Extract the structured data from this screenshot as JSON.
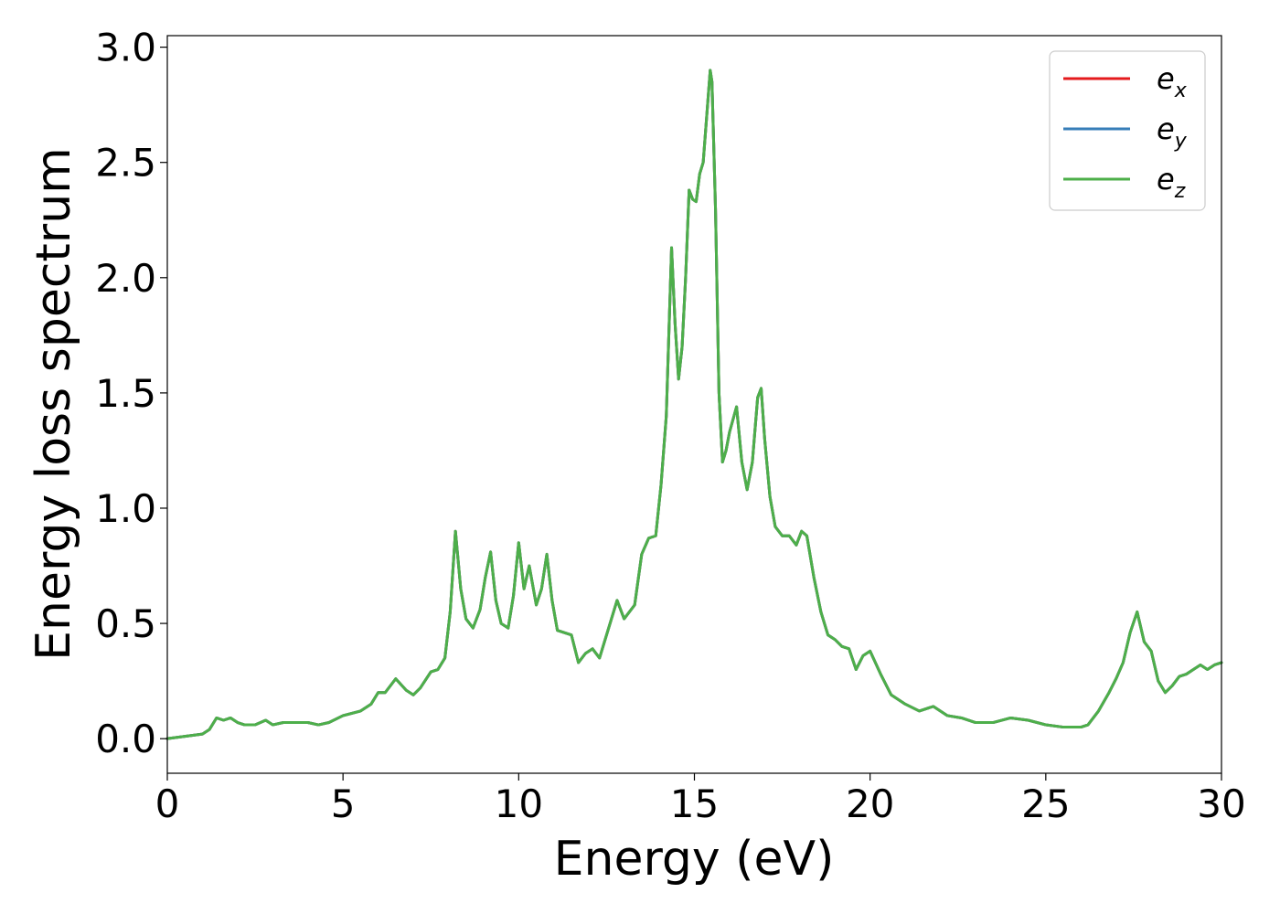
{
  "chart_data": {
    "type": "line",
    "title": "",
    "xlabel": "Energy (eV)",
    "ylabel": "Energy loss spectrum",
    "xlim": [
      0,
      30
    ],
    "ylim": [
      -0.15,
      3.05
    ],
    "xticks": [
      0,
      5,
      10,
      15,
      20,
      25,
      30
    ],
    "yticks": [
      0.0,
      0.5,
      1.0,
      1.5,
      2.0,
      2.5,
      3.0
    ],
    "xtick_labels": [
      "0",
      "5",
      "10",
      "15",
      "20",
      "25",
      "30"
    ],
    "ytick_labels": [
      "0.0",
      "0.5",
      "1.0",
      "1.5",
      "2.0",
      "2.5",
      "3.0"
    ],
    "grid": false,
    "legend_position": "top-right",
    "x": [
      0,
      0.5,
      1.0,
      1.2,
      1.4,
      1.6,
      1.8,
      2.0,
      2.2,
      2.5,
      2.8,
      3.0,
      3.3,
      3.6,
      4.0,
      4.3,
      4.6,
      5.0,
      5.5,
      5.8,
      6.0,
      6.2,
      6.5,
      6.8,
      7.0,
      7.2,
      7.5,
      7.7,
      7.9,
      8.05,
      8.2,
      8.35,
      8.5,
      8.7,
      8.9,
      9.05,
      9.2,
      9.35,
      9.5,
      9.7,
      9.85,
      10.0,
      10.15,
      10.3,
      10.5,
      10.65,
      10.8,
      10.95,
      11.1,
      11.3,
      11.5,
      11.7,
      11.9,
      12.1,
      12.3,
      12.6,
      12.8,
      13.0,
      13.3,
      13.5,
      13.7,
      13.9,
      14.05,
      14.2,
      14.35,
      14.45,
      14.55,
      14.65,
      14.75,
      14.85,
      14.95,
      15.05,
      15.15,
      15.25,
      15.35,
      15.45,
      15.5,
      15.6,
      15.7,
      15.8,
      15.9,
      16.0,
      16.2,
      16.35,
      16.5,
      16.65,
      16.8,
      16.9,
      17.0,
      17.15,
      17.3,
      17.5,
      17.7,
      17.9,
      18.05,
      18.2,
      18.4,
      18.6,
      18.8,
      19.0,
      19.2,
      19.4,
      19.6,
      19.8,
      20.0,
      20.3,
      20.6,
      21.0,
      21.4,
      21.8,
      22.2,
      22.6,
      23.0,
      23.5,
      24.0,
      24.5,
      25.0,
      25.5,
      26.0,
      26.2,
      26.5,
      26.8,
      27.0,
      27.2,
      27.4,
      27.6,
      27.8,
      28.0,
      28.2,
      28.4,
      28.6,
      28.8,
      29.0,
      29.2,
      29.4,
      29.6,
      29.8,
      30.0
    ],
    "series": [
      {
        "name": "e_x",
        "color": "#e41a1c",
        "y": [
          0.0,
          0.01,
          0.02,
          0.04,
          0.09,
          0.08,
          0.09,
          0.07,
          0.06,
          0.06,
          0.08,
          0.06,
          0.07,
          0.07,
          0.07,
          0.06,
          0.07,
          0.1,
          0.12,
          0.15,
          0.2,
          0.2,
          0.26,
          0.21,
          0.19,
          0.22,
          0.29,
          0.3,
          0.35,
          0.55,
          0.9,
          0.65,
          0.52,
          0.48,
          0.56,
          0.7,
          0.81,
          0.6,
          0.5,
          0.48,
          0.62,
          0.85,
          0.65,
          0.75,
          0.58,
          0.65,
          0.8,
          0.6,
          0.47,
          0.46,
          0.45,
          0.33,
          0.37,
          0.39,
          0.35,
          0.5,
          0.6,
          0.52,
          0.58,
          0.8,
          0.87,
          0.88,
          1.1,
          1.4,
          2.13,
          1.8,
          1.56,
          1.7,
          2.0,
          2.38,
          2.34,
          2.33,
          2.45,
          2.5,
          2.7,
          2.9,
          2.85,
          2.3,
          1.5,
          1.2,
          1.25,
          1.33,
          1.44,
          1.2,
          1.08,
          1.2,
          1.48,
          1.52,
          1.3,
          1.05,
          0.92,
          0.88,
          0.88,
          0.84,
          0.9,
          0.88,
          0.7,
          0.55,
          0.45,
          0.43,
          0.4,
          0.39,
          0.3,
          0.36,
          0.38,
          0.28,
          0.19,
          0.15,
          0.12,
          0.14,
          0.1,
          0.09,
          0.07,
          0.07,
          0.09,
          0.08,
          0.06,
          0.05,
          0.05,
          0.06,
          0.12,
          0.2,
          0.26,
          0.33,
          0.46,
          0.55,
          0.42,
          0.38,
          0.25,
          0.2,
          0.23,
          0.27,
          0.28,
          0.3,
          0.32,
          0.3,
          0.32,
          0.33
        ]
      },
      {
        "name": "e_y",
        "color": "#377eb8",
        "y": [
          0.0,
          0.01,
          0.02,
          0.04,
          0.09,
          0.08,
          0.09,
          0.07,
          0.06,
          0.06,
          0.08,
          0.06,
          0.07,
          0.07,
          0.07,
          0.06,
          0.07,
          0.1,
          0.12,
          0.15,
          0.2,
          0.2,
          0.26,
          0.21,
          0.19,
          0.22,
          0.29,
          0.3,
          0.35,
          0.55,
          0.9,
          0.65,
          0.52,
          0.48,
          0.56,
          0.7,
          0.81,
          0.6,
          0.5,
          0.48,
          0.62,
          0.85,
          0.65,
          0.75,
          0.58,
          0.65,
          0.8,
          0.6,
          0.47,
          0.46,
          0.45,
          0.33,
          0.37,
          0.39,
          0.35,
          0.5,
          0.6,
          0.52,
          0.58,
          0.8,
          0.87,
          0.88,
          1.1,
          1.4,
          2.13,
          1.8,
          1.56,
          1.7,
          2.0,
          2.38,
          2.34,
          2.33,
          2.45,
          2.5,
          2.7,
          2.9,
          2.85,
          2.3,
          1.5,
          1.2,
          1.25,
          1.33,
          1.44,
          1.2,
          1.08,
          1.2,
          1.48,
          1.52,
          1.3,
          1.05,
          0.92,
          0.88,
          0.88,
          0.84,
          0.9,
          0.88,
          0.7,
          0.55,
          0.45,
          0.43,
          0.4,
          0.39,
          0.3,
          0.36,
          0.38,
          0.28,
          0.19,
          0.15,
          0.12,
          0.14,
          0.1,
          0.09,
          0.07,
          0.07,
          0.09,
          0.08,
          0.06,
          0.05,
          0.05,
          0.06,
          0.12,
          0.2,
          0.26,
          0.33,
          0.46,
          0.55,
          0.42,
          0.38,
          0.25,
          0.2,
          0.23,
          0.27,
          0.28,
          0.3,
          0.32,
          0.3,
          0.32,
          0.33
        ]
      },
      {
        "name": "e_z",
        "color": "#4daf4a",
        "y": [
          0.0,
          0.01,
          0.02,
          0.04,
          0.09,
          0.08,
          0.09,
          0.07,
          0.06,
          0.06,
          0.08,
          0.06,
          0.07,
          0.07,
          0.07,
          0.06,
          0.07,
          0.1,
          0.12,
          0.15,
          0.2,
          0.2,
          0.26,
          0.21,
          0.19,
          0.22,
          0.29,
          0.3,
          0.35,
          0.55,
          0.9,
          0.65,
          0.52,
          0.48,
          0.56,
          0.7,
          0.81,
          0.6,
          0.5,
          0.48,
          0.62,
          0.85,
          0.65,
          0.75,
          0.58,
          0.65,
          0.8,
          0.6,
          0.47,
          0.46,
          0.45,
          0.33,
          0.37,
          0.39,
          0.35,
          0.5,
          0.6,
          0.52,
          0.58,
          0.8,
          0.87,
          0.88,
          1.1,
          1.4,
          2.13,
          1.8,
          1.56,
          1.7,
          2.0,
          2.38,
          2.34,
          2.33,
          2.45,
          2.5,
          2.7,
          2.9,
          2.85,
          2.3,
          1.5,
          1.2,
          1.25,
          1.33,
          1.44,
          1.2,
          1.08,
          1.2,
          1.48,
          1.52,
          1.3,
          1.05,
          0.92,
          0.88,
          0.88,
          0.84,
          0.9,
          0.88,
          0.7,
          0.55,
          0.45,
          0.43,
          0.4,
          0.39,
          0.3,
          0.36,
          0.38,
          0.28,
          0.19,
          0.15,
          0.12,
          0.14,
          0.1,
          0.09,
          0.07,
          0.07,
          0.09,
          0.08,
          0.06,
          0.05,
          0.05,
          0.06,
          0.12,
          0.2,
          0.26,
          0.33,
          0.46,
          0.55,
          0.42,
          0.38,
          0.25,
          0.2,
          0.23,
          0.27,
          0.28,
          0.3,
          0.32,
          0.3,
          0.32,
          0.33
        ]
      }
    ],
    "legend": [
      {
        "base": "e",
        "sub": "x",
        "color": "#e41a1c"
      },
      {
        "base": "e",
        "sub": "y",
        "color": "#377eb8"
      },
      {
        "base": "e",
        "sub": "z",
        "color": "#4daf4a"
      }
    ]
  }
}
